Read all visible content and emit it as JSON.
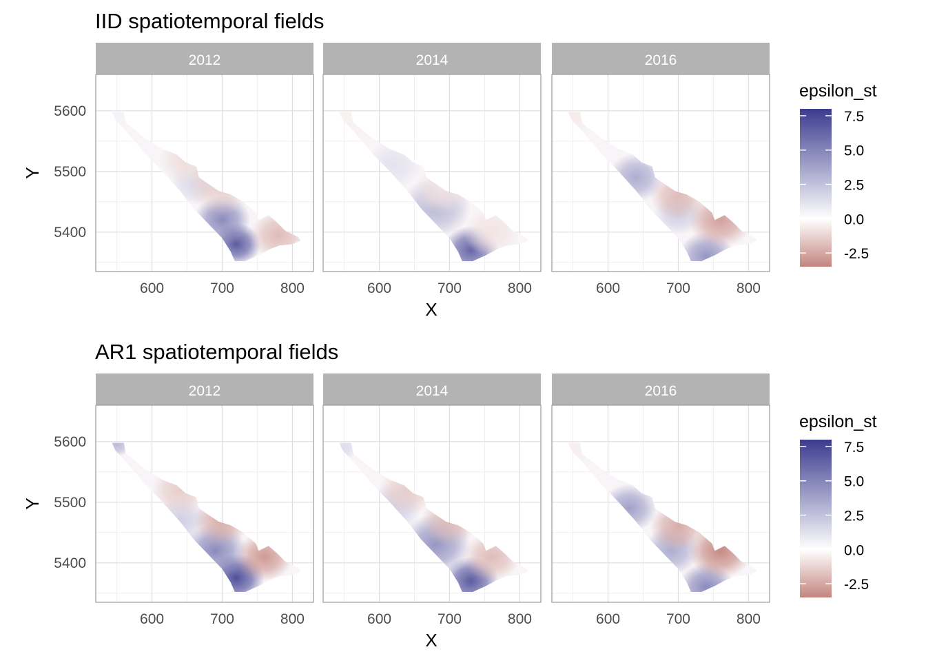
{
  "chart_data": [
    {
      "type": "heatmap",
      "title": "IID spatiotemporal fields",
      "facets": [
        "2012",
        "2014",
        "2016"
      ],
      "xlabel": "X",
      "ylabel": "Y",
      "xticks": [
        "600",
        "700",
        "800"
      ],
      "yticks": [
        "5400",
        "5500",
        "5600"
      ],
      "xlim": [
        520,
        830
      ],
      "ylim": [
        5335,
        5660
      ],
      "legend": {
        "title": "epsilon_st",
        "labels": [
          "7.5",
          "5.0",
          "2.5",
          "0.0",
          "-2.5"
        ],
        "range": [
          -3.5,
          8.0
        ],
        "low_color": "#c4857e",
        "mid_color": "#ffffff",
        "high_color": "#3b3b8f",
        "position": "right"
      },
      "series": [
        {
          "name": "2012",
          "anomalies": [
            {
              "x": 720,
              "y": 5380,
              "v": 7.0,
              "r": 35
            },
            {
              "x": 700,
              "y": 5420,
              "v": 5.0,
              "r": 40
            },
            {
              "x": 660,
              "y": 5480,
              "v": 1.5,
              "r": 35
            },
            {
              "x": 780,
              "y": 5395,
              "v": -2.0,
              "r": 40
            },
            {
              "x": 700,
              "y": 5480,
              "v": -1.5,
              "r": 50
            },
            {
              "x": 650,
              "y": 5520,
              "v": -1.0,
              "r": 40
            },
            {
              "x": 550,
              "y": 5595,
              "v": 0.5,
              "r": 30
            }
          ]
        },
        {
          "name": "2014",
          "anomalies": [
            {
              "x": 730,
              "y": 5370,
              "v": 6.5,
              "r": 40
            },
            {
              "x": 680,
              "y": 5440,
              "v": 3.0,
              "r": 50
            },
            {
              "x": 620,
              "y": 5510,
              "v": 1.2,
              "r": 40
            },
            {
              "x": 760,
              "y": 5400,
              "v": -0.8,
              "r": 40
            },
            {
              "x": 690,
              "y": 5470,
              "v": -0.8,
              "r": 40
            },
            {
              "x": 560,
              "y": 5580,
              "v": -0.4,
              "r": 40
            }
          ]
        },
        {
          "name": "2016",
          "anomalies": [
            {
              "x": 740,
              "y": 5360,
              "v": 4.5,
              "r": 40
            },
            {
              "x": 640,
              "y": 5490,
              "v": 3.5,
              "r": 40
            },
            {
              "x": 700,
              "y": 5430,
              "v": 2.0,
              "r": 35
            },
            {
              "x": 760,
              "y": 5420,
              "v": -2.8,
              "r": 45
            },
            {
              "x": 700,
              "y": 5460,
              "v": -2.0,
              "r": 40
            },
            {
              "x": 550,
              "y": 5590,
              "v": -0.6,
              "r": 30
            }
          ]
        }
      ]
    },
    {
      "type": "heatmap",
      "title": "AR1 spatiotemporal fields",
      "facets": [
        "2012",
        "2014",
        "2016"
      ],
      "xlabel": "X",
      "ylabel": "Y",
      "xticks": [
        "600",
        "700",
        "800"
      ],
      "yticks": [
        "5400",
        "5500",
        "5600"
      ],
      "xlim": [
        520,
        830
      ],
      "ylim": [
        5335,
        5660
      ],
      "legend": {
        "title": "epsilon_st",
        "labels": [
          "7.5",
          "5.0",
          "2.5",
          "0.0",
          "-2.5"
        ],
        "range": [
          -3.5,
          8.0
        ],
        "low_color": "#c4857e",
        "mid_color": "#ffffff",
        "high_color": "#3b3b8f",
        "position": "right"
      },
      "series": [
        {
          "name": "2012",
          "anomalies": [
            {
              "x": 720,
              "y": 5375,
              "v": 7.5,
              "r": 40
            },
            {
              "x": 690,
              "y": 5420,
              "v": 5.0,
              "r": 45
            },
            {
              "x": 640,
              "y": 5470,
              "v": 2.0,
              "r": 40
            },
            {
              "x": 550,
              "y": 5595,
              "v": 3.0,
              "r": 20
            },
            {
              "x": 760,
              "y": 5410,
              "v": -3.0,
              "r": 40
            },
            {
              "x": 700,
              "y": 5470,
              "v": -2.5,
              "r": 40
            },
            {
              "x": 640,
              "y": 5520,
              "v": -1.5,
              "r": 40
            }
          ]
        },
        {
          "name": "2014",
          "anomalies": [
            {
              "x": 730,
              "y": 5370,
              "v": 7.0,
              "r": 40
            },
            {
              "x": 680,
              "y": 5430,
              "v": 4.5,
              "r": 50
            },
            {
              "x": 620,
              "y": 5490,
              "v": 2.0,
              "r": 40
            },
            {
              "x": 550,
              "y": 5590,
              "v": 1.5,
              "r": 20
            },
            {
              "x": 760,
              "y": 5410,
              "v": -2.0,
              "r": 40
            },
            {
              "x": 700,
              "y": 5470,
              "v": -2.0,
              "r": 40
            },
            {
              "x": 640,
              "y": 5520,
              "v": -1.5,
              "r": 40
            }
          ]
        },
        {
          "name": "2016",
          "anomalies": [
            {
              "x": 740,
              "y": 5360,
              "v": 5.0,
              "r": 40
            },
            {
              "x": 630,
              "y": 5490,
              "v": 4.0,
              "r": 40
            },
            {
              "x": 690,
              "y": 5420,
              "v": 3.5,
              "r": 40
            },
            {
              "x": 760,
              "y": 5420,
              "v": -3.5,
              "r": 45
            },
            {
              "x": 700,
              "y": 5460,
              "v": -2.5,
              "r": 40
            },
            {
              "x": 550,
              "y": 5590,
              "v": -0.5,
              "r": 30
            }
          ]
        }
      ]
    }
  ]
}
